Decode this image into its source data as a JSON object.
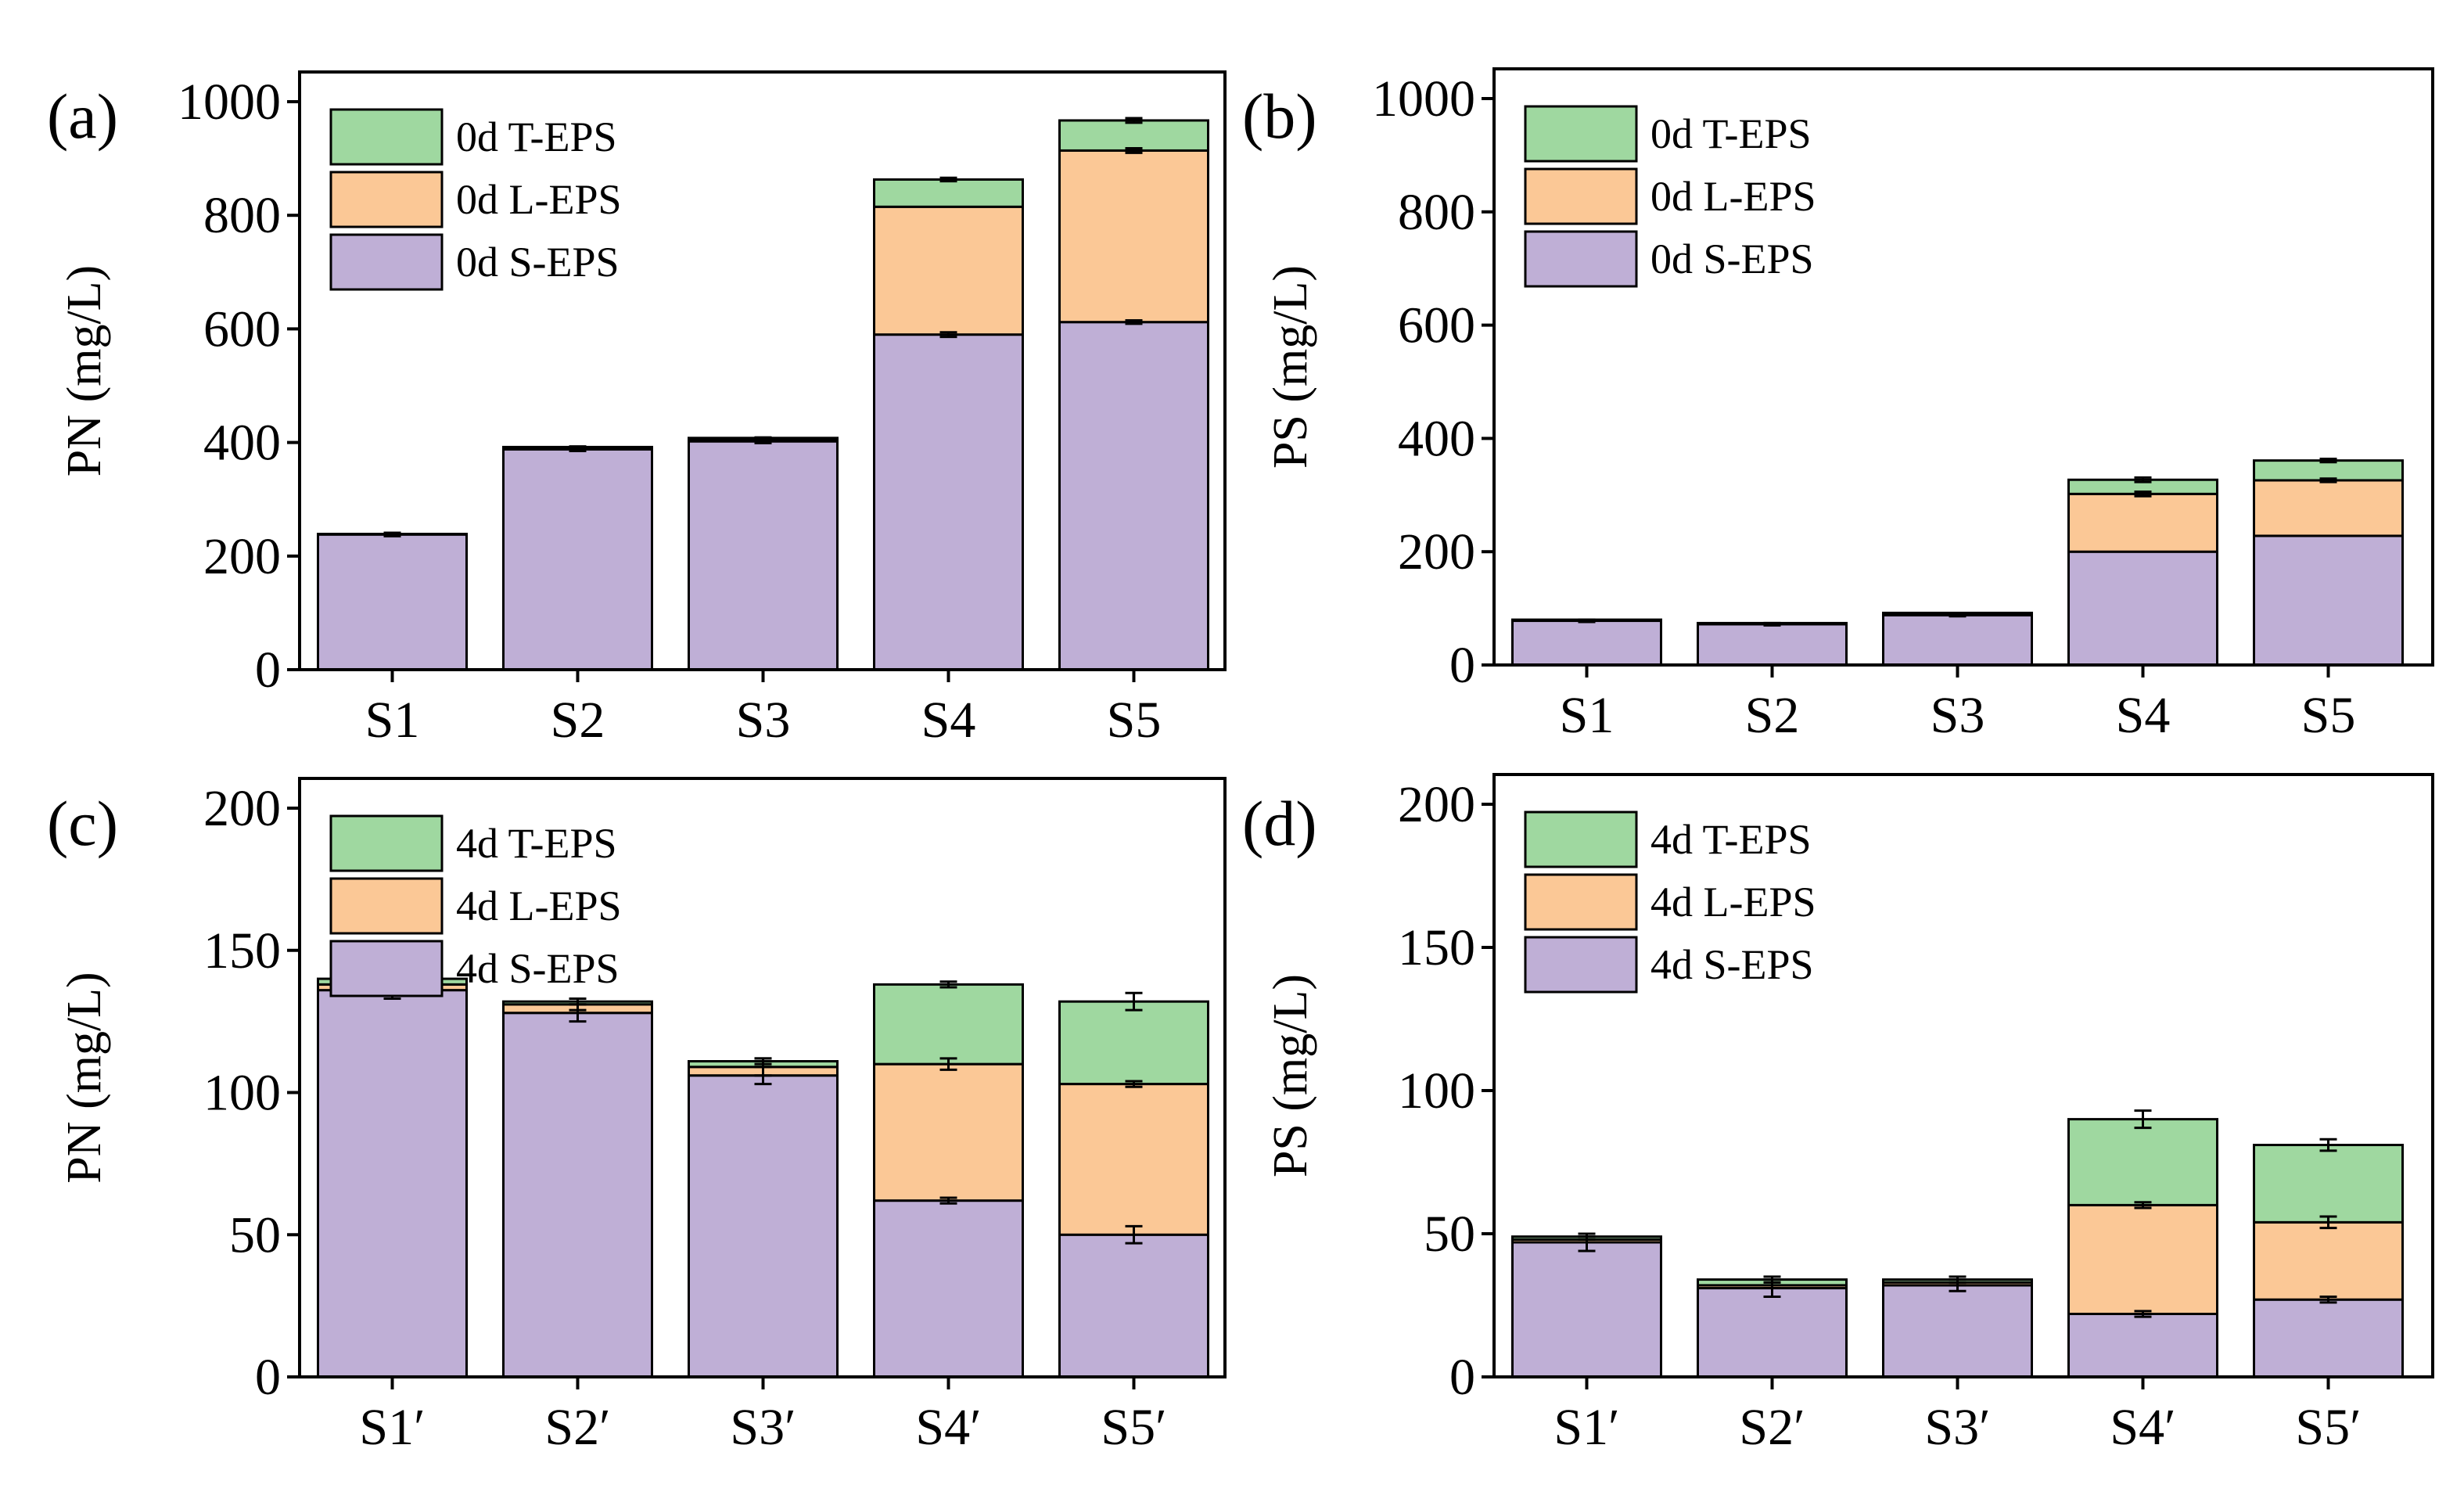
{
  "colors": {
    "s_eps": "#bfafd6",
    "l_eps": "#fbc896",
    "t_eps": "#9fd8a0",
    "axis": "#000000"
  },
  "chart_data": [
    {
      "type": "bar",
      "stacked": true,
      "panel": "(a)",
      "ylabel": "PN (mg/L)",
      "xlabel": "",
      "ylim": [
        0,
        1000
      ],
      "yticks": [
        0,
        200,
        400,
        600,
        800,
        1000
      ],
      "categories": [
        "S1",
        "S2",
        "S3",
        "S4",
        "S5"
      ],
      "legend_position": "top-left",
      "series": [
        {
          "name": "0d S-EPS",
          "color_key": "s_eps",
          "values": [
            238,
            388,
            402,
            590,
            612
          ],
          "errors": [
            3,
            3,
            3,
            4,
            3
          ]
        },
        {
          "name": "0d L-EPS",
          "color_key": "l_eps",
          "values": [
            0,
            2,
            2,
            225,
            302
          ],
          "errors": [
            0,
            0,
            0,
            0,
            4
          ]
        },
        {
          "name": "0d T-EPS",
          "color_key": "t_eps",
          "values": [
            1,
            2,
            4,
            48,
            53
          ],
          "errors": [
            1,
            1,
            1,
            3,
            4
          ]
        }
      ]
    },
    {
      "type": "bar",
      "stacked": true,
      "panel": "(b)",
      "ylabel": "PS (mg/L)",
      "xlabel": "",
      "ylim": [
        0,
        1000
      ],
      "yticks": [
        0,
        200,
        400,
        600,
        800,
        1000
      ],
      "categories": [
        "S1",
        "S2",
        "S3",
        "S4",
        "S5"
      ],
      "legend_position": "top-left",
      "series": [
        {
          "name": "0d S-EPS",
          "color_key": "s_eps",
          "values": [
            78,
            72,
            88,
            200,
            228
          ],
          "errors": [
            2,
            2,
            2,
            0,
            0
          ]
        },
        {
          "name": "0d L-EPS",
          "color_key": "l_eps",
          "values": [
            1,
            1,
            2,
            102,
            98
          ],
          "errors": [
            0,
            0,
            0,
            4,
            3
          ]
        },
        {
          "name": "0d T-EPS",
          "color_key": "t_eps",
          "values": [
            1,
            1,
            2,
            25,
            35
          ],
          "errors": [
            0,
            0,
            0,
            4,
            3
          ]
        }
      ]
    },
    {
      "type": "bar",
      "stacked": true,
      "panel": "(c)",
      "ylabel": "PN (mg/L)",
      "xlabel": "",
      "ylim": [
        0,
        200
      ],
      "yticks": [
        0,
        50,
        100,
        150,
        200
      ],
      "categories": [
        "S1′",
        "S2′",
        "S3′",
        "S4′",
        "S5′"
      ],
      "legend_position": "top-left",
      "series": [
        {
          "name": "4d S-EPS",
          "color_key": "s_eps",
          "values": [
            136,
            128,
            106,
            62,
            50
          ],
          "errors": [
            3,
            3,
            3,
            1,
            3
          ]
        },
        {
          "name": "4d L-EPS",
          "color_key": "l_eps",
          "values": [
            2,
            3,
            3,
            48,
            53
          ],
          "errors": [
            1,
            2,
            3,
            2,
            1
          ]
        },
        {
          "name": "4d T-EPS",
          "color_key": "t_eps",
          "values": [
            2,
            1,
            2,
            28,
            29
          ],
          "errors": [
            2,
            1,
            1,
            1,
            3
          ]
        }
      ]
    },
    {
      "type": "bar",
      "stacked": true,
      "panel": "(d)",
      "ylabel": "PS (mg/L)",
      "xlabel": "",
      "ylim": [
        0,
        200
      ],
      "yticks": [
        0,
        50,
        100,
        150,
        200
      ],
      "categories": [
        "S1′",
        "S2′",
        "S3′",
        "S4′",
        "S5′"
      ],
      "legend_position": "top-left",
      "series": [
        {
          "name": "4d S-EPS",
          "color_key": "s_eps",
          "values": [
            47,
            31,
            32,
            22,
            27
          ],
          "errors": [
            3,
            3,
            2,
            1,
            1
          ]
        },
        {
          "name": "4d L-EPS",
          "color_key": "l_eps",
          "values": [
            1,
            1,
            1,
            38,
            27
          ],
          "errors": [
            1,
            1,
            1,
            1,
            2
          ]
        },
        {
          "name": "4d T-EPS",
          "color_key": "t_eps",
          "values": [
            1,
            2,
            1,
            30,
            27
          ],
          "errors": [
            1,
            1,
            1,
            3,
            2
          ]
        }
      ]
    }
  ]
}
